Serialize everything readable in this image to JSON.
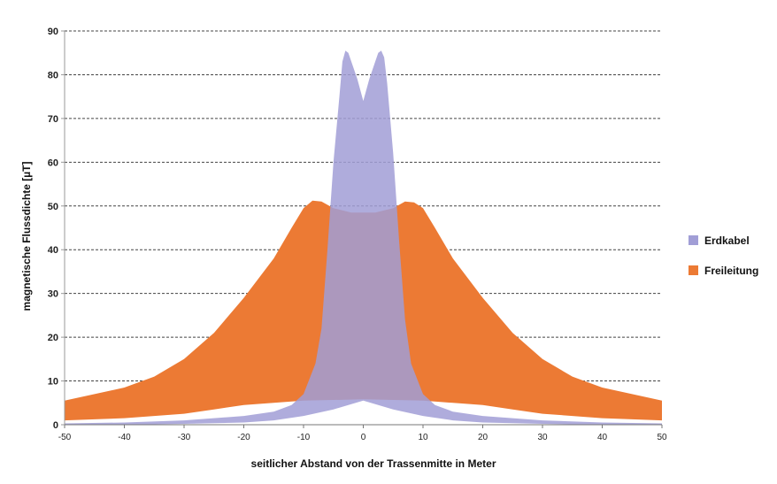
{
  "chart_data": {
    "type": "area",
    "xlabel": "seitlicher Abstand von der Trassenmitte in Meter",
    "ylabel": "magnetische Flussdichte [µT]",
    "xlim": [
      -50,
      50
    ],
    "ylim": [
      0,
      90
    ],
    "x_ticks": [
      -50,
      -40,
      -30,
      -20,
      -10,
      0,
      10,
      20,
      30,
      40,
      50
    ],
    "y_ticks": [
      0,
      10,
      20,
      30,
      40,
      50,
      60,
      70,
      80,
      90
    ],
    "grid": "horizontal-dashed",
    "legend_position": "right",
    "series": [
      {
        "name": "Erdkabel",
        "color": "#a19ed6",
        "upper": [
          [
            -50,
            0.3
          ],
          [
            -40,
            0.5
          ],
          [
            -30,
            1
          ],
          [
            -20,
            2
          ],
          [
            -15,
            3
          ],
          [
            -12,
            4.5
          ],
          [
            -10,
            7
          ],
          [
            -8,
            14
          ],
          [
            -7,
            22
          ],
          [
            -6,
            40
          ],
          [
            -5,
            60
          ],
          [
            -4,
            75
          ],
          [
            -3.5,
            83
          ],
          [
            -3,
            85.5
          ],
          [
            -2.5,
            85
          ],
          [
            -2,
            83
          ],
          [
            -1,
            79
          ],
          [
            0,
            74
          ],
          [
            1,
            79
          ],
          [
            2,
            83
          ],
          [
            2.5,
            85
          ],
          [
            3,
            85.5
          ],
          [
            3.5,
            84
          ],
          [
            4,
            78
          ],
          [
            5,
            62
          ],
          [
            6,
            42
          ],
          [
            7,
            24
          ],
          [
            8,
            14
          ],
          [
            10,
            7
          ],
          [
            12,
            4.5
          ],
          [
            15,
            3
          ],
          [
            20,
            2
          ],
          [
            30,
            1
          ],
          [
            40,
            0.5
          ],
          [
            50,
            0.3
          ]
        ],
        "lower": [
          [
            -50,
            0
          ],
          [
            -40,
            0
          ],
          [
            -30,
            0.2
          ],
          [
            -20,
            0.5
          ],
          [
            -15,
            1
          ],
          [
            -10,
            2
          ],
          [
            -5,
            3.5
          ],
          [
            0,
            5.5
          ],
          [
            5,
            3.5
          ],
          [
            10,
            2
          ],
          [
            15,
            1
          ],
          [
            20,
            0.5
          ],
          [
            30,
            0.2
          ],
          [
            40,
            0
          ],
          [
            50,
            0
          ]
        ]
      },
      {
        "name": "Freileitung",
        "color": "#ec7a34",
        "upper": [
          [
            -50,
            5.5
          ],
          [
            -45,
            7
          ],
          [
            -40,
            8.5
          ],
          [
            -35,
            11
          ],
          [
            -30,
            15
          ],
          [
            -25,
            21
          ],
          [
            -20,
            29
          ],
          [
            -15,
            38
          ],
          [
            -12,
            45
          ],
          [
            -10,
            49.5
          ],
          [
            -8.5,
            51.2
          ],
          [
            -7,
            51
          ],
          [
            -5,
            49.5
          ],
          [
            -2,
            48.5
          ],
          [
            0,
            48.5
          ],
          [
            2,
            48.5
          ],
          [
            5,
            49.5
          ],
          [
            7,
            51
          ],
          [
            8.5,
            50.8
          ],
          [
            10,
            49.5
          ],
          [
            12,
            45
          ],
          [
            15,
            38
          ],
          [
            20,
            29
          ],
          [
            25,
            21
          ],
          [
            30,
            15
          ],
          [
            35,
            11
          ],
          [
            40,
            8.5
          ],
          [
            45,
            7
          ],
          [
            50,
            5.5
          ]
        ],
        "lower": [
          [
            -50,
            1
          ],
          [
            -40,
            1.5
          ],
          [
            -30,
            2.5
          ],
          [
            -25,
            3.5
          ],
          [
            -20,
            4.5
          ],
          [
            -15,
            5
          ],
          [
            -10,
            5.5
          ],
          [
            0,
            5.8
          ],
          [
            10,
            5.5
          ],
          [
            15,
            5
          ],
          [
            20,
            4.5
          ],
          [
            25,
            3.5
          ],
          [
            30,
            2.5
          ],
          [
            40,
            1.5
          ],
          [
            50,
            1
          ]
        ]
      }
    ]
  }
}
